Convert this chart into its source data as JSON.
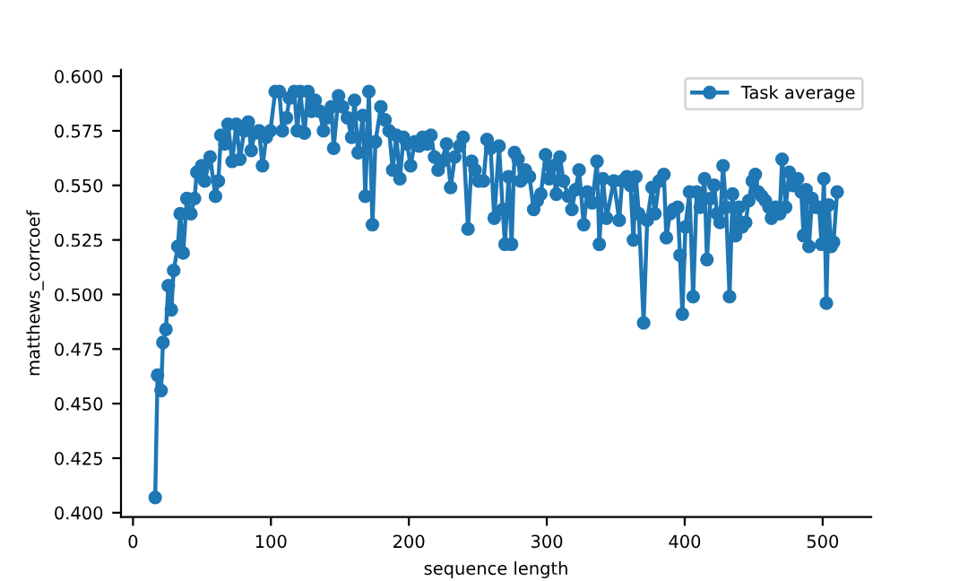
{
  "chart_data": {
    "type": "line",
    "xlabel": "sequence length",
    "ylabel": "matthews_corrcoef",
    "xlim": [
      -8.7,
      535.2
    ],
    "xticks": [
      0,
      100,
      200,
      300,
      400,
      500
    ],
    "ylim": [
      0.398,
      0.603
    ],
    "yticks": [
      {
        "value": 0.4,
        "label": "0.400"
      },
      {
        "value": 0.425,
        "label": "0.425"
      },
      {
        "value": 0.45,
        "label": "0.450"
      },
      {
        "value": 0.475,
        "label": "0.475"
      },
      {
        "value": 0.5,
        "label": "0.500"
      },
      {
        "value": 0.525,
        "label": "0.525"
      },
      {
        "value": 0.55,
        "label": "0.550"
      },
      {
        "value": 0.575,
        "label": "0.575"
      },
      {
        "value": 0.6,
        "label": "0.600"
      }
    ],
    "grid": false,
    "legend": "top right",
    "marker": "circle",
    "line_style": "solid",
    "series": [
      {
        "name": "Task average",
        "color": "#1f77b4",
        "x": [
          16.1,
          17.8,
          20.4,
          21.7,
          23.9,
          25.6,
          27.8,
          29.5,
          32.5,
          34.2,
          36.4,
          39.0,
          42.0,
          44.6,
          46.3,
          49.8,
          52.0,
          55.9,
          59.8,
          61.9,
          63.7,
          66.7,
          68.9,
          71.9,
          74.9,
          77.5,
          80.6,
          83.6,
          85.7,
          88.3,
          91.4,
          93.9,
          96.6,
          99.6,
          103.1,
          106.1,
          108.3,
          111.3,
          113.4,
          116.9,
          119.1,
          121.3,
          124.3,
          126.9,
          129.5,
          132.1,
          135.1,
          138.1,
          140.7,
          143.8,
          145.5,
          149.0,
          152.0,
          155.4,
          158.5,
          160.6,
          163.2,
          166.7,
          168.4,
          171.0,
          173.6,
          175.8,
          179.7,
          182.7,
          185.7,
          188.3,
          190.9,
          193.5,
          196.1,
          198.7,
          201.3,
          204.3,
          207.4,
          210.0,
          213.4,
          216.0,
          218.6,
          221.2,
          223.8,
          227.3,
          230.3,
          233.3,
          236.8,
          239.4,
          242.9,
          245.5,
          248.0,
          250.6,
          254.1,
          256.7,
          259.3,
          261.9,
          265.4,
          268.0,
          269.7,
          272.3,
          274.5,
          276.6,
          279.2,
          281.0,
          284.4,
          287.4,
          290.5,
          293.1,
          295.7,
          299.1,
          301.7,
          304.3,
          306.9,
          309.5,
          312.1,
          315.6,
          318.2,
          320.8,
          323.4,
          326.8,
          329.4,
          332.9,
          336.4,
          338.1,
          340.7,
          343.3,
          348.6,
          352.5,
          354.6,
          358.1,
          360.7,
          362.8,
          364.6,
          366.7,
          370.2,
          372.8,
          376.3,
          378.4,
          381.5,
          384.9,
          386.7,
          389.3,
          391.9,
          394.9,
          396.6,
          398.3,
          400.5,
          403.5,
          406.1,
          408.7,
          411.3,
          414.4,
          416.1,
          418.7,
          421.3,
          423.5,
          425.6,
          427.8,
          430.0,
          432.5,
          434.7,
          436.9,
          439.5,
          441.6,
          444.2,
          446.4,
          449.0,
          451.2,
          453.3,
          455.9,
          458.5,
          461.1,
          462.9,
          465.9,
          468.9,
          470.6,
          473.2,
          475.8,
          478.4,
          481.9,
          484.5,
          486.2,
          488.0,
          490.1,
          492.3,
          494.9,
          497.5,
          499.2,
          500.9,
          502.7,
          504.4,
          506.1,
          507.9,
          510.5
        ],
        "values": [
          0.407,
          0.463,
          0.456,
          0.478,
          0.484,
          0.504,
          0.493,
          0.511,
          0.522,
          0.537,
          0.519,
          0.544,
          0.537,
          0.544,
          0.556,
          0.559,
          0.552,
          0.563,
          0.545,
          0.552,
          0.573,
          0.569,
          0.578,
          0.561,
          0.578,
          0.562,
          0.575,
          0.579,
          0.566,
          0.574,
          0.575,
          0.559,
          0.572,
          0.575,
          0.593,
          0.593,
          0.575,
          0.581,
          0.59,
          0.593,
          0.575,
          0.593,
          0.574,
          0.593,
          0.584,
          0.589,
          0.584,
          0.575,
          0.581,
          0.586,
          0.567,
          0.591,
          0.586,
          0.581,
          0.572,
          0.589,
          0.565,
          0.582,
          0.545,
          0.593,
          0.532,
          0.57,
          0.586,
          0.58,
          0.575,
          0.557,
          0.573,
          0.553,
          0.572,
          0.569,
          0.559,
          0.57,
          0.568,
          0.572,
          0.569,
          0.573,
          0.563,
          0.557,
          0.561,
          0.569,
          0.549,
          0.563,
          0.568,
          0.572,
          0.53,
          0.561,
          0.557,
          0.552,
          0.552,
          0.571,
          0.567,
          0.535,
          0.568,
          0.539,
          0.523,
          0.554,
          0.523,
          0.565,
          0.562,
          0.552,
          0.557,
          0.554,
          0.539,
          0.543,
          0.546,
          0.564,
          0.553,
          0.559,
          0.546,
          0.563,
          0.552,
          0.545,
          0.539,
          0.548,
          0.557,
          0.532,
          0.547,
          0.542,
          0.561,
          0.523,
          0.553,
          0.535,
          0.552,
          0.534,
          0.552,
          0.554,
          0.55,
          0.525,
          0.554,
          0.537,
          0.487,
          0.534,
          0.549,
          0.537,
          0.552,
          0.555,
          0.526,
          0.537,
          0.539,
          0.54,
          0.518,
          0.491,
          0.531,
          0.547,
          0.499,
          0.547,
          0.54,
          0.553,
          0.516,
          0.544,
          0.55,
          0.537,
          0.533,
          0.559,
          0.54,
          0.499,
          0.546,
          0.527,
          0.54,
          0.531,
          0.533,
          0.543,
          0.552,
          0.555,
          0.547,
          0.545,
          0.543,
          0.54,
          0.535,
          0.54,
          0.537,
          0.562,
          0.54,
          0.556,
          0.55,
          0.553,
          0.547,
          0.527,
          0.548,
          0.522,
          0.544,
          0.54,
          0.54,
          0.523,
          0.553,
          0.496,
          0.541,
          0.522,
          0.524,
          0.547
        ]
      }
    ]
  }
}
